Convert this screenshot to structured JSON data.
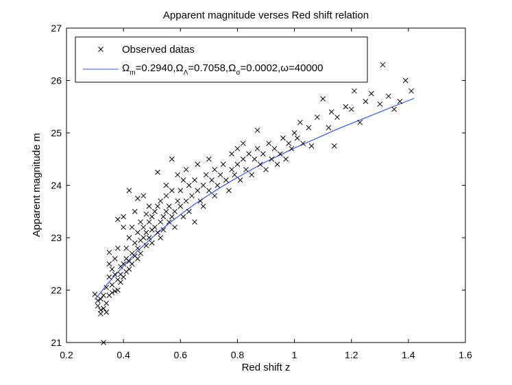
{
  "chart_data": {
    "type": "scatter",
    "title": "Apparent magnitude verses Red shift relation",
    "xlabel": "Red shift z",
    "ylabel": "Apparent magnitude m",
    "xlim": [
      0.2,
      1.6
    ],
    "ylim": [
      21,
      27
    ],
    "xticks": [
      0.2,
      0.4,
      0.6,
      0.8,
      1.0,
      1.2,
      1.4,
      1.6
    ],
    "xtick_labels": [
      "0.2",
      "0.4",
      "0.6",
      "0.8",
      "1",
      "1.2",
      "1.4",
      "1.6"
    ],
    "yticks": [
      21,
      22,
      23,
      24,
      25,
      26,
      27
    ],
    "ytick_labels": [
      "21",
      "22",
      "23",
      "24",
      "25",
      "26",
      "27"
    ],
    "grid": false,
    "legend_position": "top-left",
    "colors": {
      "observed": "#000000",
      "model": "#3355dd"
    },
    "series": [
      {
        "name": "Observed datas",
        "marker": "x",
        "points": [
          [
            0.3,
            21.92
          ],
          [
            0.31,
            21.7
          ],
          [
            0.31,
            21.8
          ],
          [
            0.32,
            21.62
          ],
          [
            0.32,
            21.55
          ],
          [
            0.32,
            21.83
          ],
          [
            0.33,
            21.0
          ],
          [
            0.33,
            21.65
          ],
          [
            0.33,
            21.9
          ],
          [
            0.34,
            21.58
          ],
          [
            0.34,
            22.05
          ],
          [
            0.34,
            21.75
          ],
          [
            0.35,
            22.25
          ],
          [
            0.35,
            22.5
          ],
          [
            0.35,
            21.9
          ],
          [
            0.35,
            22.72
          ],
          [
            0.36,
            22.1
          ],
          [
            0.36,
            21.95
          ],
          [
            0.36,
            22.4
          ],
          [
            0.37,
            22.3
          ],
          [
            0.37,
            21.98
          ],
          [
            0.37,
            22.6
          ],
          [
            0.38,
            22.2
          ],
          [
            0.38,
            22.8
          ],
          [
            0.38,
            23.35
          ],
          [
            0.38,
            22.0
          ],
          [
            0.39,
            22.45
          ],
          [
            0.39,
            22.15
          ],
          [
            0.39,
            22.3
          ],
          [
            0.4,
            23.2
          ],
          [
            0.4,
            22.5
          ],
          [
            0.4,
            22.25
          ],
          [
            0.4,
            23.4
          ],
          [
            0.41,
            22.6
          ],
          [
            0.41,
            22.35
          ],
          [
            0.41,
            22.8
          ],
          [
            0.42,
            22.4
          ],
          [
            0.42,
            23.0
          ],
          [
            0.42,
            23.9
          ],
          [
            0.42,
            22.55
          ],
          [
            0.43,
            22.7
          ],
          [
            0.43,
            22.5
          ],
          [
            0.43,
            23.2
          ],
          [
            0.44,
            22.9
          ],
          [
            0.44,
            22.65
          ],
          [
            0.44,
            23.5
          ],
          [
            0.45,
            22.8
          ],
          [
            0.45,
            23.1
          ],
          [
            0.45,
            22.6
          ],
          [
            0.45,
            23.75
          ],
          [
            0.46,
            22.95
          ],
          [
            0.46,
            23.3
          ],
          [
            0.46,
            22.7
          ],
          [
            0.47,
            23.0
          ],
          [
            0.47,
            23.2
          ],
          [
            0.47,
            23.8
          ],
          [
            0.48,
            23.1
          ],
          [
            0.48,
            22.85
          ],
          [
            0.48,
            23.45
          ],
          [
            0.49,
            23.0
          ],
          [
            0.49,
            23.3
          ],
          [
            0.49,
            23.6
          ],
          [
            0.5,
            23.15
          ],
          [
            0.5,
            22.9
          ],
          [
            0.5,
            23.4
          ],
          [
            0.51,
            23.2
          ],
          [
            0.51,
            23.5
          ],
          [
            0.52,
            23.6
          ],
          [
            0.52,
            23.1
          ],
          [
            0.52,
            24.25
          ],
          [
            0.53,
            23.3
          ],
          [
            0.53,
            23.0
          ],
          [
            0.53,
            23.7
          ],
          [
            0.54,
            23.4
          ],
          [
            0.54,
            23.15
          ],
          [
            0.55,
            23.5
          ],
          [
            0.55,
            23.8
          ],
          [
            0.55,
            24.0
          ],
          [
            0.56,
            23.3
          ],
          [
            0.56,
            23.6
          ],
          [
            0.57,
            23.4
          ],
          [
            0.57,
            23.9
          ],
          [
            0.57,
            24.5
          ],
          [
            0.58,
            23.5
          ],
          [
            0.58,
            23.2
          ],
          [
            0.59,
            23.7
          ],
          [
            0.59,
            24.2
          ],
          [
            0.6,
            23.6
          ],
          [
            0.6,
            23.9
          ],
          [
            0.61,
            23.4
          ],
          [
            0.61,
            24.1
          ],
          [
            0.62,
            23.7
          ],
          [
            0.62,
            24.3
          ],
          [
            0.63,
            23.5
          ],
          [
            0.63,
            24.0
          ],
          [
            0.64,
            23.8
          ],
          [
            0.65,
            23.3
          ],
          [
            0.65,
            24.1
          ],
          [
            0.66,
            23.9
          ],
          [
            0.66,
            24.4
          ],
          [
            0.67,
            23.7
          ],
          [
            0.68,
            24.0
          ],
          [
            0.68,
            23.6
          ],
          [
            0.69,
            24.2
          ],
          [
            0.7,
            23.9
          ],
          [
            0.7,
            24.5
          ],
          [
            0.71,
            24.1
          ],
          [
            0.72,
            23.8
          ],
          [
            0.72,
            24.3
          ],
          [
            0.73,
            24.0
          ],
          [
            0.74,
            24.2
          ],
          [
            0.75,
            24.4
          ],
          [
            0.76,
            24.1
          ],
          [
            0.77,
            23.9
          ],
          [
            0.78,
            24.3
          ],
          [
            0.78,
            24.6
          ],
          [
            0.79,
            24.2
          ],
          [
            0.8,
            24.4
          ],
          [
            0.8,
            24.7
          ],
          [
            0.81,
            24.1
          ],
          [
            0.82,
            24.5
          ],
          [
            0.82,
            24.8
          ],
          [
            0.83,
            24.3
          ],
          [
            0.84,
            24.6
          ],
          [
            0.85,
            24.2
          ],
          [
            0.86,
            24.5
          ],
          [
            0.87,
            24.7
          ],
          [
            0.87,
            25.05
          ],
          [
            0.88,
            24.4
          ],
          [
            0.89,
            24.6
          ],
          [
            0.9,
            24.3
          ],
          [
            0.91,
            24.8
          ],
          [
            0.92,
            24.5
          ],
          [
            0.93,
            24.7
          ],
          [
            0.94,
            24.4
          ],
          [
            0.95,
            24.6
          ],
          [
            0.96,
            24.9
          ],
          [
            0.97,
            24.5
          ],
          [
            0.98,
            24.8
          ],
          [
            0.99,
            24.7
          ],
          [
            1.0,
            25.0
          ],
          [
            1.01,
            24.9
          ],
          [
            1.02,
            25.2
          ],
          [
            1.03,
            24.8
          ],
          [
            1.05,
            25.1
          ],
          [
            1.06,
            24.75
          ],
          [
            1.08,
            25.3
          ],
          [
            1.1,
            25.65
          ],
          [
            1.12,
            25.1
          ],
          [
            1.13,
            25.4
          ],
          [
            1.14,
            24.75
          ],
          [
            1.15,
            25.3
          ],
          [
            1.18,
            25.5
          ],
          [
            1.2,
            25.45
          ],
          [
            1.21,
            25.8
          ],
          [
            1.23,
            25.2
          ],
          [
            1.25,
            25.6
          ],
          [
            1.27,
            25.75
          ],
          [
            1.3,
            25.55
          ],
          [
            1.31,
            26.3
          ],
          [
            1.33,
            25.7
          ],
          [
            1.35,
            25.45
          ],
          [
            1.37,
            25.6
          ],
          [
            1.39,
            26.0
          ],
          [
            1.41,
            25.8
          ]
        ]
      },
      {
        "name": "Ω_m=0.2940,Ω_Λ=0.7058,Ω_σ=0.0002,ω=40000",
        "marker": "line",
        "points": [
          [
            0.3,
            21.82
          ],
          [
            0.35,
            22.16
          ],
          [
            0.4,
            22.46
          ],
          [
            0.45,
            22.75
          ],
          [
            0.5,
            23.0
          ],
          [
            0.55,
            23.23
          ],
          [
            0.6,
            23.44
          ],
          [
            0.65,
            23.64
          ],
          [
            0.7,
            23.82
          ],
          [
            0.75,
            23.99
          ],
          [
            0.8,
            24.15
          ],
          [
            0.85,
            24.3
          ],
          [
            0.9,
            24.45
          ],
          [
            0.95,
            24.58
          ],
          [
            1.0,
            24.71
          ],
          [
            1.05,
            24.83
          ],
          [
            1.1,
            24.95
          ],
          [
            1.15,
            25.07
          ],
          [
            1.2,
            25.18
          ],
          [
            1.25,
            25.29
          ],
          [
            1.3,
            25.4
          ],
          [
            1.35,
            25.51
          ],
          [
            1.42,
            25.66
          ]
        ]
      }
    ],
    "legend": {
      "observed_label": "Observed datas",
      "model_label_parts": [
        "Ω",
        "m",
        "=0.2940,Ω",
        "Λ",
        "=0.7058,Ω",
        "σ",
        "=0.0002,ω=40000"
      ]
    }
  }
}
